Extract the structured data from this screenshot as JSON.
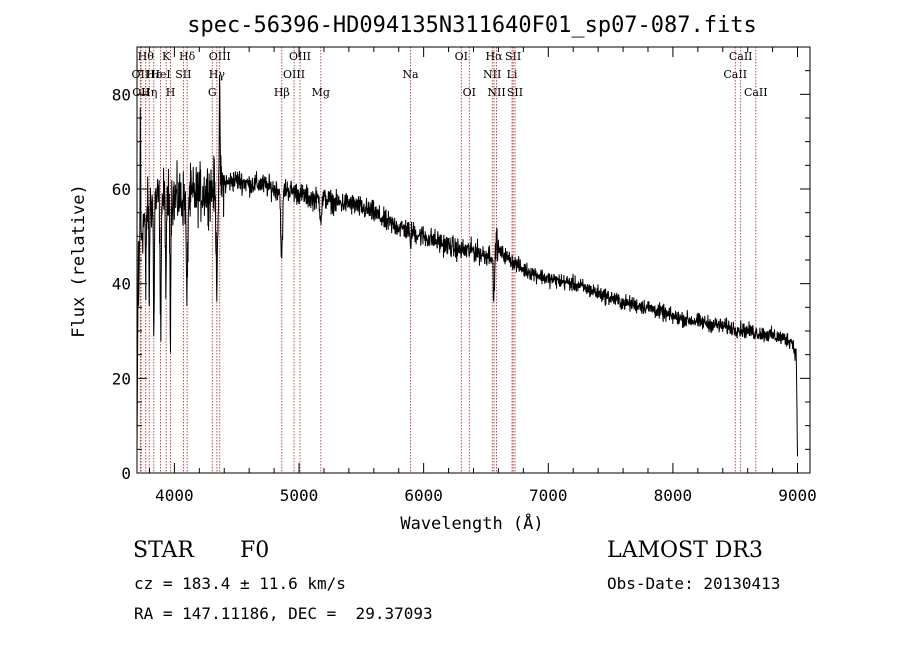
{
  "chart_data": {
    "type": "line",
    "title": "spec-56396-HD094135N311640F01_sp07-087.fits",
    "xlabel": "Wavelength (Å)",
    "ylabel": "Flux (relative)",
    "xlim": [
      3700,
      9100
    ],
    "ylim": [
      0,
      90
    ],
    "xticks": [
      4000,
      5000,
      6000,
      7000,
      8000,
      9000
    ],
    "yticks": [
      0,
      20,
      40,
      60,
      80
    ],
    "continuum": {
      "x": [
        3700,
        3720,
        3760,
        3800,
        3900,
        4000,
        4100,
        4200,
        4300,
        4400,
        4500,
        4600,
        4700,
        4800,
        4900,
        5000,
        5100,
        5200,
        5300,
        5400,
        5500,
        5600,
        5700,
        5800,
        5900,
        6000,
        6100,
        6200,
        6300,
        6400,
        6500,
        6600,
        6700,
        6800,
        6900,
        7000,
        7200,
        7400,
        7600,
        7800,
        8000,
        8200,
        8400,
        8600,
        8800,
        8950,
        8990,
        9000
      ],
      "y": [
        5,
        48,
        54,
        57,
        58,
        58,
        58,
        59,
        60,
        61,
        62,
        61,
        61,
        60,
        60,
        59,
        58,
        58,
        57,
        57,
        56,
        55,
        53,
        52,
        51,
        50,
        49,
        48,
        47,
        47,
        46,
        47,
        45,
        43,
        42,
        41,
        40,
        38,
        36,
        35,
        33,
        32,
        31,
        30,
        29,
        28,
        25,
        3
      ]
    },
    "absorption_features": [
      {
        "center": 3770,
        "width": 4,
        "depth": 18
      },
      {
        "center": 3798,
        "width": 4,
        "depth": 22
      },
      {
        "center": 3835,
        "width": 5,
        "depth": 30
      },
      {
        "center": 3889,
        "width": 6,
        "depth": 28
      },
      {
        "center": 3933,
        "width": 5,
        "depth": 22
      },
      {
        "center": 3968,
        "width": 5,
        "depth": 26
      },
      {
        "center": 4101,
        "width": 8,
        "depth": 22
      },
      {
        "center": 4340,
        "width": 9,
        "depth": 18
      },
      {
        "center": 4861,
        "width": 10,
        "depth": 15
      },
      {
        "center": 5175,
        "width": 10,
        "depth": 4
      },
      {
        "center": 5893,
        "width": 6,
        "depth": 3
      },
      {
        "center": 6563,
        "width": 8,
        "depth": 10
      }
    ],
    "emission_features": [
      {
        "center": 3727,
        "width": 3,
        "height": 25
      },
      {
        "center": 4364,
        "width": 4,
        "height": 22
      },
      {
        "center": 6585,
        "width": 5,
        "height": 4
      }
    ],
    "noise_amplitude": {
      "blue": 9,
      "mid": 3.5,
      "red": 2.5
    },
    "spectral_lines": [
      {
        "wavelength": 3727,
        "label": "OII",
        "row": 2
      },
      {
        "wavelength": 3733,
        "label": "OII",
        "row": 3
      },
      {
        "wavelength": 3770,
        "label": "Hθ",
        "row": 1
      },
      {
        "wavelength": 3798,
        "label": "Hη",
        "row": 3
      },
      {
        "wavelength": 3835,
        "label": "Hε",
        "row": 2
      },
      {
        "wavelength": 3889,
        "label": "HeI",
        "row": 2
      },
      {
        "wavelength": 3934,
        "label": "K",
        "row": 1
      },
      {
        "wavelength": 3969,
        "label": "H",
        "row": 3
      },
      {
        "wavelength": 4072,
        "label": "SII",
        "row": 2
      },
      {
        "wavelength": 4102,
        "label": "Hδ",
        "row": 1
      },
      {
        "wavelength": 4304,
        "label": "G",
        "row": 3
      },
      {
        "wavelength": 4341,
        "label": "Hγ",
        "row": 2
      },
      {
        "wavelength": 4364,
        "label": "OIII",
        "row": 1
      },
      {
        "wavelength": 4862,
        "label": "Hβ",
        "row": 3
      },
      {
        "wavelength": 4960,
        "label": "OIII",
        "row": 2
      },
      {
        "wavelength": 5008,
        "label": "OIII",
        "row": 1
      },
      {
        "wavelength": 5175,
        "label": "Mg",
        "row": 3
      },
      {
        "wavelength": 5894,
        "label": "Na",
        "row": 2
      },
      {
        "wavelength": 6302,
        "label": "OI",
        "row": 1
      },
      {
        "wavelength": 6366,
        "label": "OI",
        "row": 3
      },
      {
        "wavelength": 6550,
        "label": "NII",
        "row": 2
      },
      {
        "wavelength": 6565,
        "label": "Hα",
        "row": 1
      },
      {
        "wavelength": 6585,
        "label": "NII",
        "row": 3
      },
      {
        "wavelength": 6709,
        "label": "Li",
        "row": 2
      },
      {
        "wavelength": 6718,
        "label": "SII",
        "row": 1
      },
      {
        "wavelength": 6733,
        "label": "SII",
        "row": 3
      },
      {
        "wavelength": 8500,
        "label": "CaII",
        "row": 2
      },
      {
        "wavelength": 8544,
        "label": "CaII",
        "row": 1
      },
      {
        "wavelength": 8665,
        "label": "CaII",
        "row": 3
      }
    ],
    "colors": {
      "spectrum": "#000000",
      "line_markers": "#b22222",
      "axes": "#000000",
      "background": "#ffffff"
    }
  },
  "info": {
    "object_class": "STAR",
    "subclass": "F0",
    "survey": "LAMOST DR3",
    "cz": "cz = 183.4 ± 11.6 km/s",
    "obs_date": "Obs-Date: 20130413",
    "coords": "RA = 147.11186, DEC =  29.37093"
  }
}
